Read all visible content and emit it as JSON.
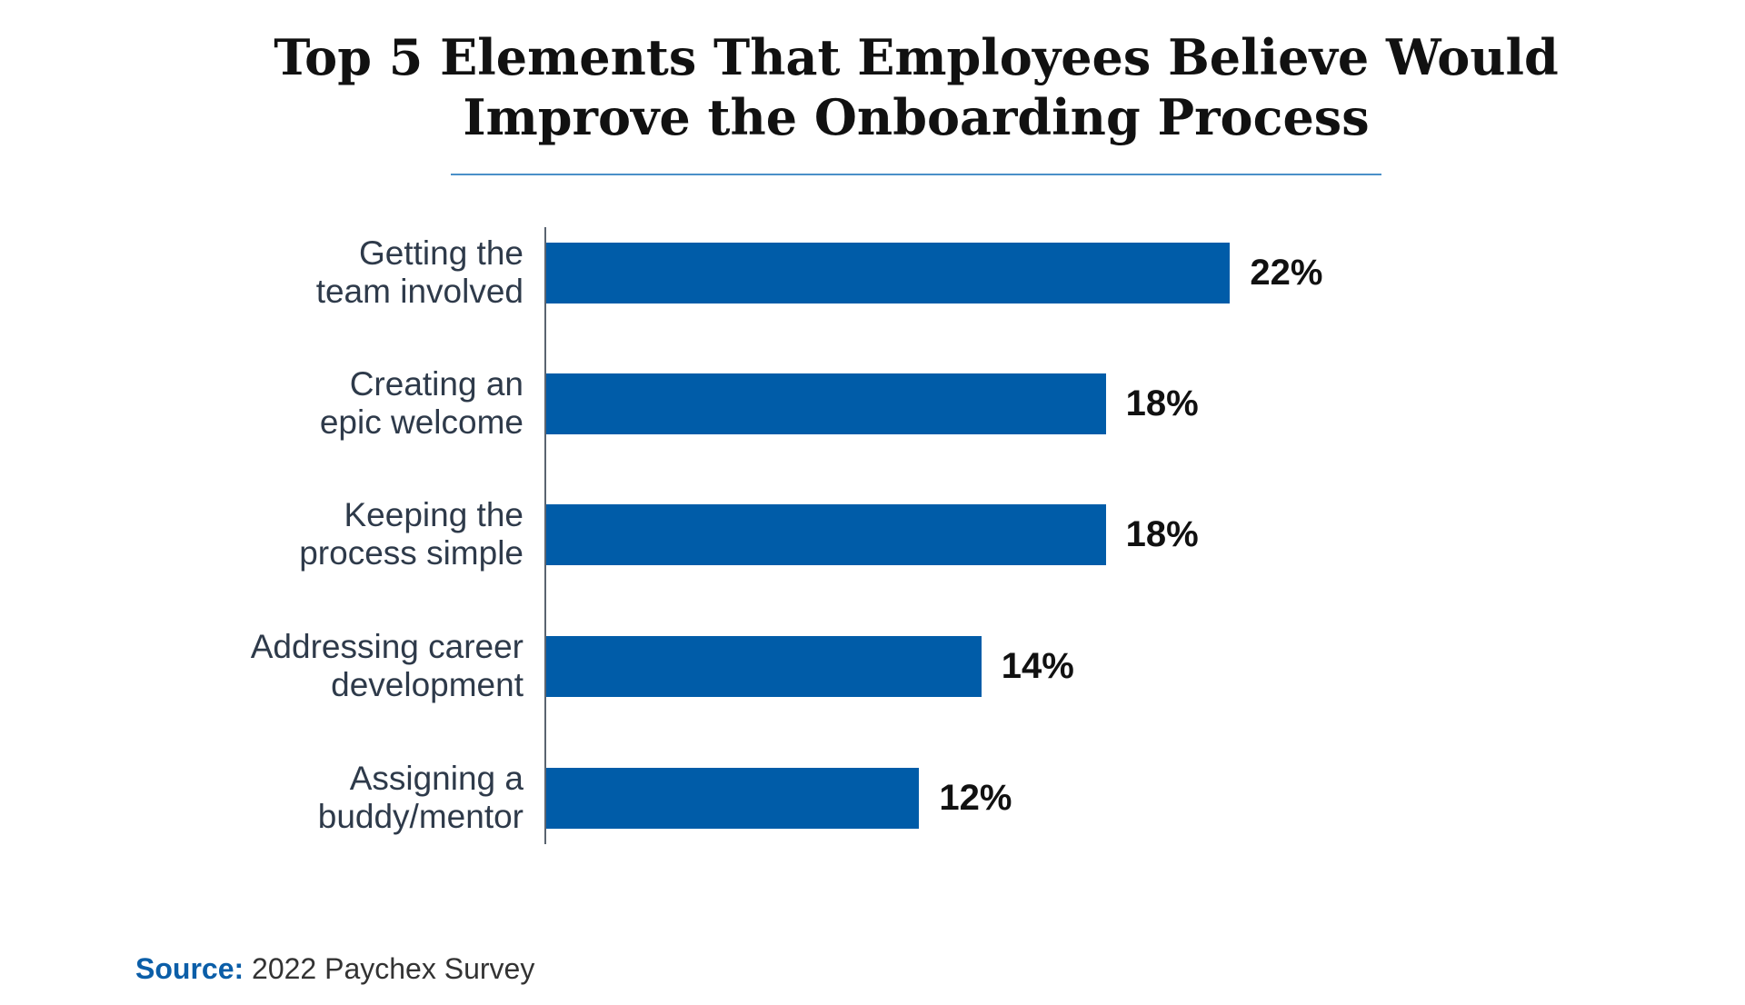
{
  "chart_data": {
    "type": "bar",
    "orientation": "horizontal",
    "title": [
      "Top 5 Elements That Employees Believe Would",
      "Improve the Onboarding Process"
    ],
    "categories": [
      [
        "Getting the",
        "team involved"
      ],
      [
        "Creating an",
        "epic welcome"
      ],
      [
        "Keeping the",
        "process simple"
      ],
      [
        "Addressing career",
        "development"
      ],
      [
        "Assigning a",
        "buddy/mentor"
      ]
    ],
    "values": [
      22,
      18,
      18,
      14,
      12
    ],
    "value_labels": [
      "22%",
      "18%",
      "18%",
      "14%",
      "12%"
    ],
    "unit": "%",
    "grid": false,
    "bar_color": "#005ca8"
  },
  "source": {
    "label": "Source:",
    "text": "2022 Paychex Survey"
  },
  "colors": {
    "accent_rule": "#4a90c8",
    "source_label": "#0b5ea8"
  }
}
